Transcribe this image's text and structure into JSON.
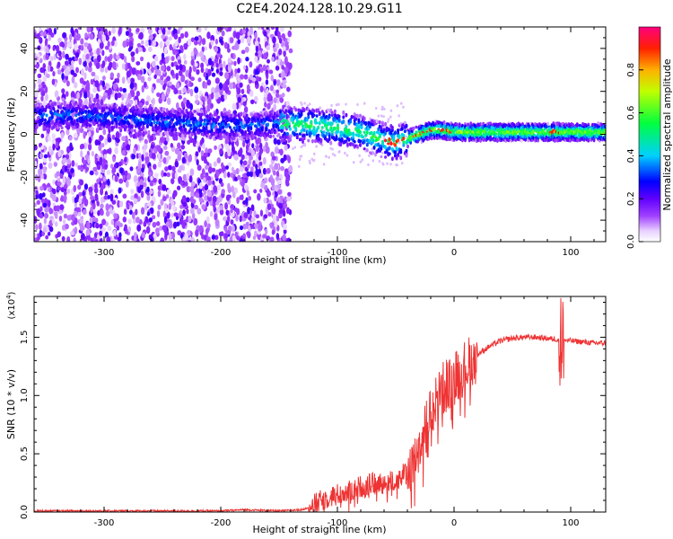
{
  "title": "C2E4.2024.128.10.29.G11",
  "chart_data": [
    {
      "type": "heatmap",
      "xlabel": "Height of straight line (km)",
      "ylabel": "Frequency (Hz)",
      "xlim": [
        -360,
        130
      ],
      "ylim": [
        -50,
        50
      ],
      "xticks": [
        -300,
        -200,
        -100,
        0,
        100
      ],
      "yticks": [
        -40,
        -20,
        0,
        20,
        40
      ],
      "colorbar": {
        "label": "Normalized spectral amplitude",
        "range": [
          0.0,
          1.0
        ],
        "ticks": [
          0.0,
          0.2,
          0.4,
          0.6,
          0.8
        ],
        "colors": [
          "#ffffff",
          "#e8d0ff",
          "#8000ff",
          "#0000ff",
          "#00e0ff",
          "#00ff00",
          "#ffff00",
          "#ff0000",
          "#ff0080"
        ]
      },
      "signal_track": {
        "x": [
          -360,
          -330,
          -300,
          -250,
          -200,
          -180,
          -150,
          -120,
          -100,
          -80,
          -70,
          -60,
          -50,
          -40,
          -30,
          -20,
          -10,
          0,
          20,
          60,
          100,
          130
        ],
        "freq": [
          8,
          9,
          8,
          6,
          4,
          4,
          5,
          4,
          3,
          1,
          -1,
          -3,
          -4,
          -2,
          0,
          2,
          2,
          1,
          1,
          1,
          1,
          1
        ]
      }
    },
    {
      "type": "line",
      "xlabel": "Height of straight line (km)",
      "ylabel": "SNR (10 * v/v)",
      "yscale_label": "(x10",
      "yscale_exp": "4",
      "yscale_close": ")",
      "xlim": [
        -360,
        130
      ],
      "ylim": [
        0.0,
        1.85
      ],
      "xticks": [
        -300,
        -200,
        -100,
        0,
        100
      ],
      "yticks": [
        "0.0",
        "0.5",
        "1.0",
        "1.5"
      ],
      "ytick_values": [
        0.0,
        0.5,
        1.0,
        1.5
      ],
      "color": "#ee3333",
      "series": [
        {
          "x": [
            -360,
            -300,
            -250,
            -200,
            -180,
            -150,
            -130,
            -120,
            -110,
            -100,
            -90,
            -80,
            -70,
            -60,
            -50,
            -40,
            -30,
            -20,
            -10,
            0,
            10,
            20,
            30,
            40,
            50,
            60,
            70,
            80,
            90,
            100,
            110,
            120,
            130
          ],
          "y": [
            0.01,
            0.01,
            0.01,
            0.01,
            0.02,
            0.01,
            0.02,
            0.06,
            0.12,
            0.15,
            0.18,
            0.22,
            0.24,
            0.25,
            0.27,
            0.35,
            0.55,
            0.85,
            1.05,
            1.15,
            1.25,
            1.35,
            1.42,
            1.47,
            1.49,
            1.5,
            1.5,
            1.49,
            1.48,
            1.47,
            1.46,
            1.45,
            1.45
          ]
        }
      ]
    }
  ]
}
